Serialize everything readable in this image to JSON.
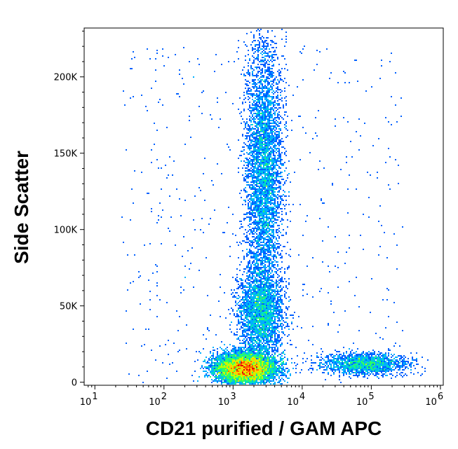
{
  "chart_data": {
    "type": "scatter",
    "style": "density-dot-plot",
    "title": "",
    "xlabel": "CD21 purified / GAM APC",
    "ylabel": "Side Scatter",
    "x_scale": "log",
    "xlim": [
      7,
      1100000
    ],
    "ylim": [
      -2000,
      232000
    ],
    "x_ticks": [
      {
        "value": 10,
        "base": "10",
        "exp": "1"
      },
      {
        "value": 100,
        "base": "10",
        "exp": "2"
      },
      {
        "value": 1000,
        "base": "10",
        "exp": "3"
      },
      {
        "value": 10000,
        "base": "10",
        "exp": "4"
      },
      {
        "value": 100000,
        "base": "10",
        "exp": "5"
      },
      {
        "value": 1000000,
        "base": "10",
        "exp": "6"
      }
    ],
    "y_ticks": [
      {
        "value": 0,
        "label": "0"
      },
      {
        "value": 50000,
        "label": "50K"
      },
      {
        "value": 100000,
        "label": "100K"
      },
      {
        "value": 150000,
        "label": "150K"
      },
      {
        "value": 200000,
        "label": "200K"
      }
    ],
    "grid": false,
    "legend": "none",
    "colormap": [
      "#0000c8",
      "#0060ff",
      "#00b0ff",
      "#00e0c0",
      "#30ff60",
      "#c0ff00",
      "#ffd000",
      "#ff6000",
      "#e00000"
    ],
    "populations": [
      {
        "name": "",
        "center_x": 1500,
        "center_y": 9000,
        "spread_log_x": 0.22,
        "spread_y": 5000,
        "relative_density": 1.0
      },
      {
        "name": "",
        "center_x": 2800,
        "center_y": 140000,
        "spread_log_x": 0.13,
        "spread_y": 42000,
        "relative_density": 0.55
      },
      {
        "name": "",
        "center_x": 2500,
        "center_y": 45000,
        "spread_log_x": 0.16,
        "spread_y": 15000,
        "relative_density": 0.35
      },
      {
        "name": "",
        "center_x": 80000,
        "center_y": 12000,
        "spread_log_x": 0.3,
        "spread_y": 3500,
        "relative_density": 0.2
      }
    ]
  }
}
